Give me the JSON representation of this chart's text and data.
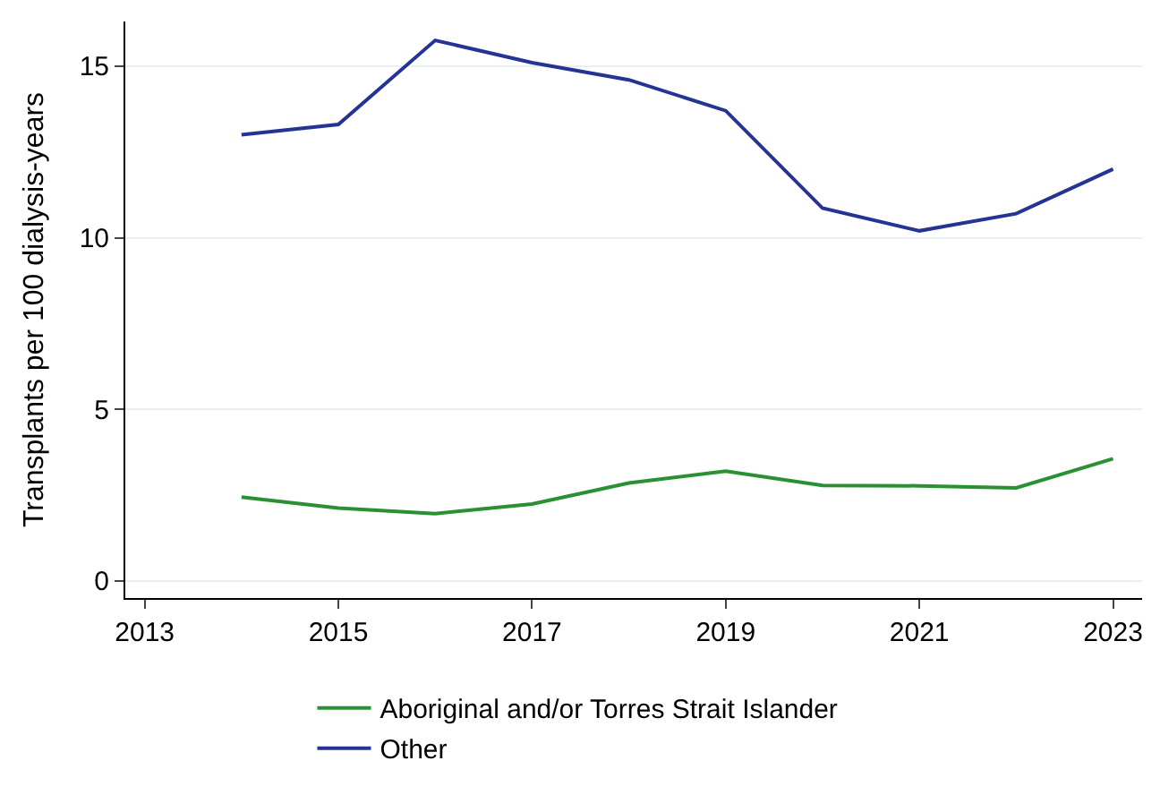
{
  "chart_data": {
    "type": "line",
    "ylabel": "Transplants per 100 dialysis-years",
    "x": [
      2014,
      2015,
      2016,
      2017,
      2018,
      2019,
      2020,
      2021,
      2022,
      2023
    ],
    "series": [
      {
        "name": "Aboriginal and/or Torres Strait Islander",
        "color": "#2a9132",
        "values": [
          2.44,
          2.12,
          1.96,
          2.24,
          2.85,
          3.2,
          2.78,
          2.77,
          2.71,
          3.56
        ]
      },
      {
        "name": "Other",
        "color": "#253494",
        "values": [
          13.0,
          13.3,
          15.75,
          15.1,
          14.6,
          13.7,
          10.86,
          10.2,
          10.7,
          12.0
        ]
      }
    ],
    "xlim": [
      2012.8,
      2023.3
    ],
    "xticks": [
      2013,
      2015,
      2017,
      2019,
      2021,
      2023
    ],
    "ylim": [
      -0.5,
      16.3
    ],
    "yticks": [
      0,
      5,
      10,
      15
    ],
    "grid": "y",
    "legend": "bottom",
    "marker": "none",
    "line_style": "solid"
  }
}
